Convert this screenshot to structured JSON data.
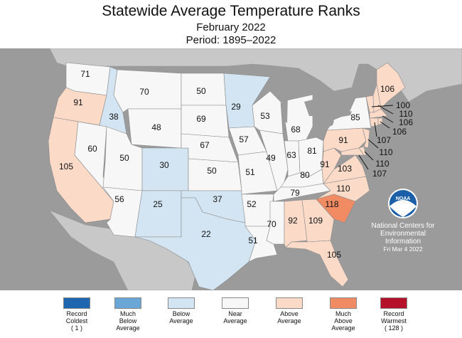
{
  "title": "Statewide Average Temperature Ranks",
  "subtitle": "February 2022",
  "period": "Period: 1895–2022",
  "credit": {
    "logo": "NOAA",
    "line1": "National Centers for",
    "line2": "Environmental",
    "line3": "Information",
    "date": "Fri Mar  4 2022"
  },
  "colors": {
    "record_coldest": "#1f66b0",
    "much_below": "#6aa6d6",
    "below": "#d3e5f2",
    "near": "#f7f7f7",
    "above": "#fbdac8",
    "much_above": "#f18b63",
    "record_warmest": "#b5112a",
    "ocean": "#9b9b9b",
    "land_other": "#c8c8c8"
  },
  "states": {
    "WA": {
      "rank": "71",
      "category": "near"
    },
    "OR": {
      "rank": "91",
      "category": "above"
    },
    "CA": {
      "rank": "105",
      "category": "above"
    },
    "ID": {
      "rank": "38",
      "category": "below"
    },
    "NV": {
      "rank": "60",
      "category": "near"
    },
    "MT": {
      "rank": "70",
      "category": "near"
    },
    "WY": {
      "rank": "48",
      "category": "near"
    },
    "UT": {
      "rank": "50",
      "category": "near"
    },
    "CO": {
      "rank": "30",
      "category": "below"
    },
    "AZ": {
      "rank": "56",
      "category": "near"
    },
    "NM": {
      "rank": "25",
      "category": "below"
    },
    "ND": {
      "rank": "50",
      "category": "near"
    },
    "SD": {
      "rank": "69",
      "category": "near"
    },
    "NE": {
      "rank": "67",
      "category": "near"
    },
    "KS": {
      "rank": "50",
      "category": "near"
    },
    "OK": {
      "rank": "37",
      "category": "below"
    },
    "TX": {
      "rank": "22",
      "category": "below"
    },
    "MN": {
      "rank": "29",
      "category": "below"
    },
    "IA": {
      "rank": "57",
      "category": "near"
    },
    "MO": {
      "rank": "51",
      "category": "near"
    },
    "AR": {
      "rank": "52",
      "category": "near"
    },
    "LA": {
      "rank": "51",
      "category": "near"
    },
    "WI": {
      "rank": "53",
      "category": "near"
    },
    "IL": {
      "rank": "49",
      "category": "near"
    },
    "MI": {
      "rank": "68",
      "category": "near"
    },
    "IN": {
      "rank": "63",
      "category": "near"
    },
    "OH": {
      "rank": "81",
      "category": "near"
    },
    "KY": {
      "rank": "80",
      "category": "near"
    },
    "TN": {
      "rank": "79",
      "category": "near"
    },
    "MS": {
      "rank": "70",
      "category": "near"
    },
    "AL": {
      "rank": "92",
      "category": "above"
    },
    "GA": {
      "rank": "109",
      "category": "above"
    },
    "FL": {
      "rank": "105",
      "category": "above"
    },
    "SC": {
      "rank": "118",
      "category": "much_above"
    },
    "NC": {
      "rank": "110",
      "category": "above"
    },
    "VA": {
      "rank": "103",
      "category": "above"
    },
    "WV": {
      "rank": "91",
      "category": "above"
    },
    "PA": {
      "rank": "91",
      "category": "above"
    },
    "NY": {
      "rank": "85",
      "category": "near"
    },
    "ME": {
      "rank": "106",
      "category": "above"
    },
    "VT": {
      "rank": "100",
      "category": "above"
    },
    "NH": {
      "rank": "110",
      "category": "above"
    },
    "MA": {
      "rank": "106",
      "category": "above"
    },
    "RI": {
      "rank": "106",
      "category": "above"
    },
    "CT": {
      "rank": "107",
      "category": "above"
    },
    "NJ": {
      "rank": "110",
      "category": "above"
    },
    "DE": {
      "rank": "110",
      "category": "above"
    },
    "MD": {
      "rank": "107",
      "category": "above"
    }
  },
  "legend": [
    {
      "key": "record_coldest",
      "label": "Record\nColdest\n( 1 )"
    },
    {
      "key": "much_below",
      "label": "Much\nBelow\nAverage"
    },
    {
      "key": "below",
      "label": "Below\nAverage"
    },
    {
      "key": "near",
      "label": "Near\nAverage"
    },
    {
      "key": "above",
      "label": "Above\nAverage"
    },
    {
      "key": "much_above",
      "label": "Much\nAbove\nAverage"
    },
    {
      "key": "record_warmest",
      "label": "Record\nWarmest\n( 128 )"
    }
  ]
}
